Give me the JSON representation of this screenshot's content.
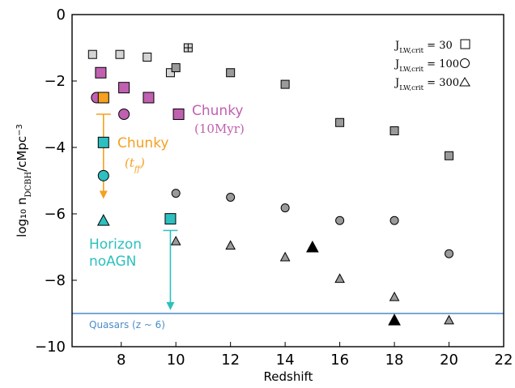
{
  "chart_data": {
    "type": "scatter",
    "xlabel": "Redshift",
    "ylabel": "log₁₀ n",
    "ylabel_sub": "DCBH",
    "ylabel_unit": "/cMpc",
    "ylabel_exp": "−3",
    "xlim": [
      6.2,
      22
    ],
    "ylim": [
      -10,
      0
    ],
    "xticks": [
      8,
      10,
      12,
      14,
      16,
      18,
      20,
      22
    ],
    "yticks": [
      0,
      -2,
      -4,
      -6,
      -8,
      -10
    ],
    "ytick_labels": [
      "0",
      "−2",
      "−4",
      "−6",
      "−8",
      "−10"
    ],
    "legend": {
      "placement": "top-right",
      "entries": [
        {
          "text": "J",
          "sub": "LW,crit",
          "value": " = 30",
          "marker": "square"
        },
        {
          "text": "J",
          "sub": "LW,crit",
          "value": " = 100",
          "marker": "circle"
        },
        {
          "text": "J",
          "sub": "LW,crit",
          "value": " = 300",
          "marker": "triangle"
        }
      ]
    },
    "colors": {
      "light_gray": "#d4d4d4",
      "gray": "#9a9a9a",
      "black": "#000000",
      "chunky_10myr": "#c060b0",
      "chunky_tff": "#f5a020",
      "horizon": "#2ebfc0",
      "quasar_line": "#4a8cc8"
    },
    "series": [
      {
        "group": "light",
        "marker": "square",
        "color": "light_gray",
        "points": [
          [
            6.95,
            -1.2
          ],
          [
            7.95,
            -1.2
          ],
          [
            8.95,
            -1.28
          ],
          [
            9.8,
            -1.75
          ]
        ]
      },
      {
        "group": "light",
        "marker": "square-plus",
        "color": "light_gray",
        "points": [
          [
            10.45,
            -1.0
          ]
        ]
      },
      {
        "group": "gray",
        "marker": "square",
        "color": "gray",
        "points": [
          [
            10.0,
            -1.6
          ],
          [
            12.0,
            -1.75
          ],
          [
            14.0,
            -2.1
          ],
          [
            16.0,
            -3.25
          ],
          [
            18.0,
            -3.5
          ],
          [
            20.0,
            -4.25
          ]
        ]
      },
      {
        "group": "gray",
        "marker": "circle",
        "color": "gray",
        "points": [
          [
            10.0,
            -5.38
          ],
          [
            12.0,
            -5.5
          ],
          [
            14.0,
            -5.82
          ],
          [
            16.0,
            -6.2
          ],
          [
            18.0,
            -6.2
          ],
          [
            20.0,
            -7.2
          ]
        ]
      },
      {
        "group": "gray",
        "marker": "triangle",
        "color": "gray",
        "points": [
          [
            10.0,
            -6.82
          ],
          [
            12.0,
            -6.95
          ],
          [
            14.0,
            -7.3
          ],
          [
            16.0,
            -7.95
          ],
          [
            18.0,
            -8.5
          ],
          [
            20.0,
            -9.2
          ]
        ]
      },
      {
        "group": "black",
        "marker": "triangle",
        "color": "black",
        "points": [
          [
            15.0,
            -7.0
          ],
          [
            18.0,
            -9.2
          ]
        ]
      },
      {
        "group": "chunky_10myr",
        "marker": "square",
        "color": "chunky_10myr",
        "points": [
          [
            7.25,
            -1.75
          ],
          [
            8.1,
            -2.2
          ],
          [
            9.0,
            -2.5
          ],
          [
            10.1,
            -3.0
          ]
        ]
      },
      {
        "group": "chunky_10myr",
        "marker": "circle",
        "color": "chunky_10myr",
        "points": [
          [
            7.1,
            -2.5
          ],
          [
            8.1,
            -3.0
          ]
        ]
      },
      {
        "group": "chunky_tff",
        "marker": "square",
        "color": "chunky_tff",
        "points": [
          [
            7.35,
            -2.5
          ]
        ]
      },
      {
        "group": "horizon",
        "marker": "square",
        "color": "horizon",
        "points": [
          [
            7.35,
            -3.85
          ],
          [
            9.8,
            -6.15
          ]
        ]
      },
      {
        "group": "horizon",
        "marker": "circle",
        "color": "horizon",
        "points": [
          [
            7.35,
            -4.85
          ]
        ]
      },
      {
        "group": "horizon",
        "marker": "triangle",
        "color": "horizon",
        "points": [
          [
            7.35,
            -6.2
          ]
        ]
      }
    ],
    "upper_limits": [
      {
        "x": 7.35,
        "y_from": -3.0,
        "y_to": -5.5,
        "color": "chunky_tff"
      },
      {
        "x": 9.8,
        "y_from": -6.5,
        "y_to": -8.85,
        "color": "horizon"
      }
    ],
    "hline": {
      "y": -9.0,
      "color": "quasar_line",
      "label": "Quasars  (z ~ 6)"
    },
    "annotations": {
      "chunky_10myr": {
        "line1": "Chunky",
        "line2": "(10Myr)"
      },
      "chunky_tff": {
        "line1": "Chunky",
        "line2": "(t",
        "line2_sub": "ff",
        "line2_end": ")"
      },
      "horizon": {
        "line1": "Horizon",
        "line2": "noAGN"
      }
    }
  }
}
